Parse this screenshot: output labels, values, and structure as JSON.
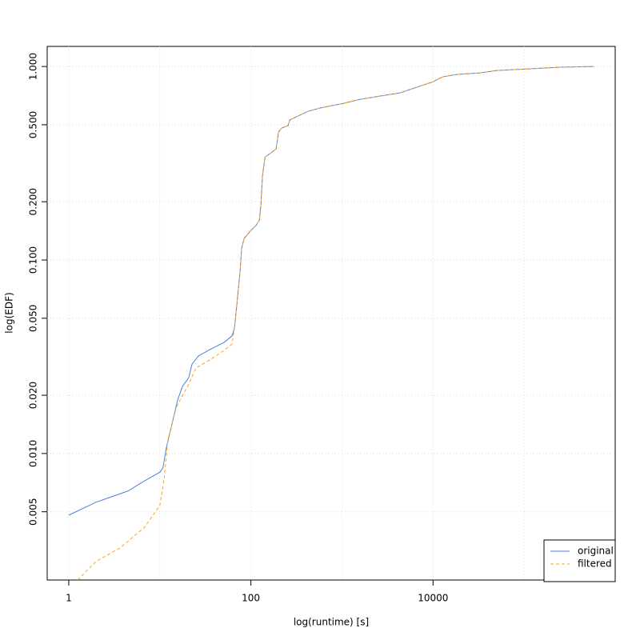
{
  "chart_data": {
    "type": "line",
    "xlabel": "log(runtime) [s]",
    "ylabel": "log(EDF)",
    "xscale": "log",
    "yscale": "log",
    "xlim": [
      0.58,
      1000000
    ],
    "ylim": [
      0.00222,
      1.27
    ],
    "xticks": [
      1,
      100,
      10000
    ],
    "xgrid": [
      1,
      10,
      100,
      1000,
      10000,
      100000
    ],
    "yticks": [
      {
        "value": 0.005,
        "label": "0.005"
      },
      {
        "value": 0.01,
        "label": "0.010"
      },
      {
        "value": 0.02,
        "label": "0.020"
      },
      {
        "value": 0.05,
        "label": "0.050"
      },
      {
        "value": 0.1,
        "label": "0.100"
      },
      {
        "value": 0.2,
        "label": "0.200"
      },
      {
        "value": 0.5,
        "label": "0.500"
      },
      {
        "value": 1,
        "label": "1.000"
      }
    ],
    "grid": true,
    "legend": "bottom-right",
    "series": [
      {
        "name": "original",
        "color": "#4f7fdb",
        "linestyle": "solid",
        "x": [
          1,
          1.99,
          4.47,
          6.7,
          10,
          10.8,
          11.8,
          13.6,
          15.7,
          17.7,
          20.8,
          22.6,
          26.5,
          35.3,
          50.7,
          62.1,
          66,
          70.2,
          76,
          79.2,
          84.2,
          97,
          114,
          124,
          129,
          134,
          143,
          171,
          189,
          201,
          218,
          256,
          267,
          327,
          425,
          576,
          1057,
          1585,
          4365,
          10000,
          12740,
          17990,
          33040,
          49550,
          111200,
          250000,
          585000
        ],
        "values": [
          0.0048,
          0.0056,
          0.0064,
          0.0072,
          0.008,
          0.0084,
          0.0107,
          0.0142,
          0.0189,
          0.0222,
          0.0247,
          0.029,
          0.0319,
          0.0344,
          0.0375,
          0.0405,
          0.0446,
          0.0593,
          0.0867,
          0.115,
          0.129,
          0.14,
          0.151,
          0.161,
          0.195,
          0.272,
          0.341,
          0.361,
          0.375,
          0.458,
          0.481,
          0.495,
          0.529,
          0.554,
          0.587,
          0.61,
          0.646,
          0.677,
          0.731,
          0.834,
          0.884,
          0.909,
          0.927,
          0.953,
          0.972,
          0.991,
          1
        ]
      },
      {
        "name": "filtered",
        "color": "#ffa31a",
        "linestyle": "dashed",
        "x": [
          1.25,
          1.99,
          3.65,
          6.7,
          10,
          11.1,
          12.3,
          15.1,
          17.7,
          20.8,
          25,
          35.3,
          50.7,
          62.1,
          66,
          70.2,
          76,
          79.2,
          84.2,
          97,
          114,
          124,
          129,
          134,
          143,
          171,
          189,
          201,
          218,
          256,
          267,
          327,
          425,
          576,
          1057,
          1585,
          4365,
          10000,
          12740,
          17990,
          33040,
          49550,
          111200,
          250000,
          585000
        ],
        "values": [
          0.00222,
          0.00277,
          0.00325,
          0.00413,
          0.00538,
          0.0073,
          0.0118,
          0.0172,
          0.0199,
          0.0229,
          0.0277,
          0.0304,
          0.0341,
          0.0368,
          0.0446,
          0.0593,
          0.0867,
          0.115,
          0.129,
          0.14,
          0.151,
          0.161,
          0.195,
          0.272,
          0.341,
          0.361,
          0.375,
          0.458,
          0.481,
          0.495,
          0.529,
          0.554,
          0.587,
          0.61,
          0.646,
          0.677,
          0.731,
          0.834,
          0.884,
          0.909,
          0.927,
          0.953,
          0.972,
          0.991,
          1
        ]
      }
    ]
  }
}
